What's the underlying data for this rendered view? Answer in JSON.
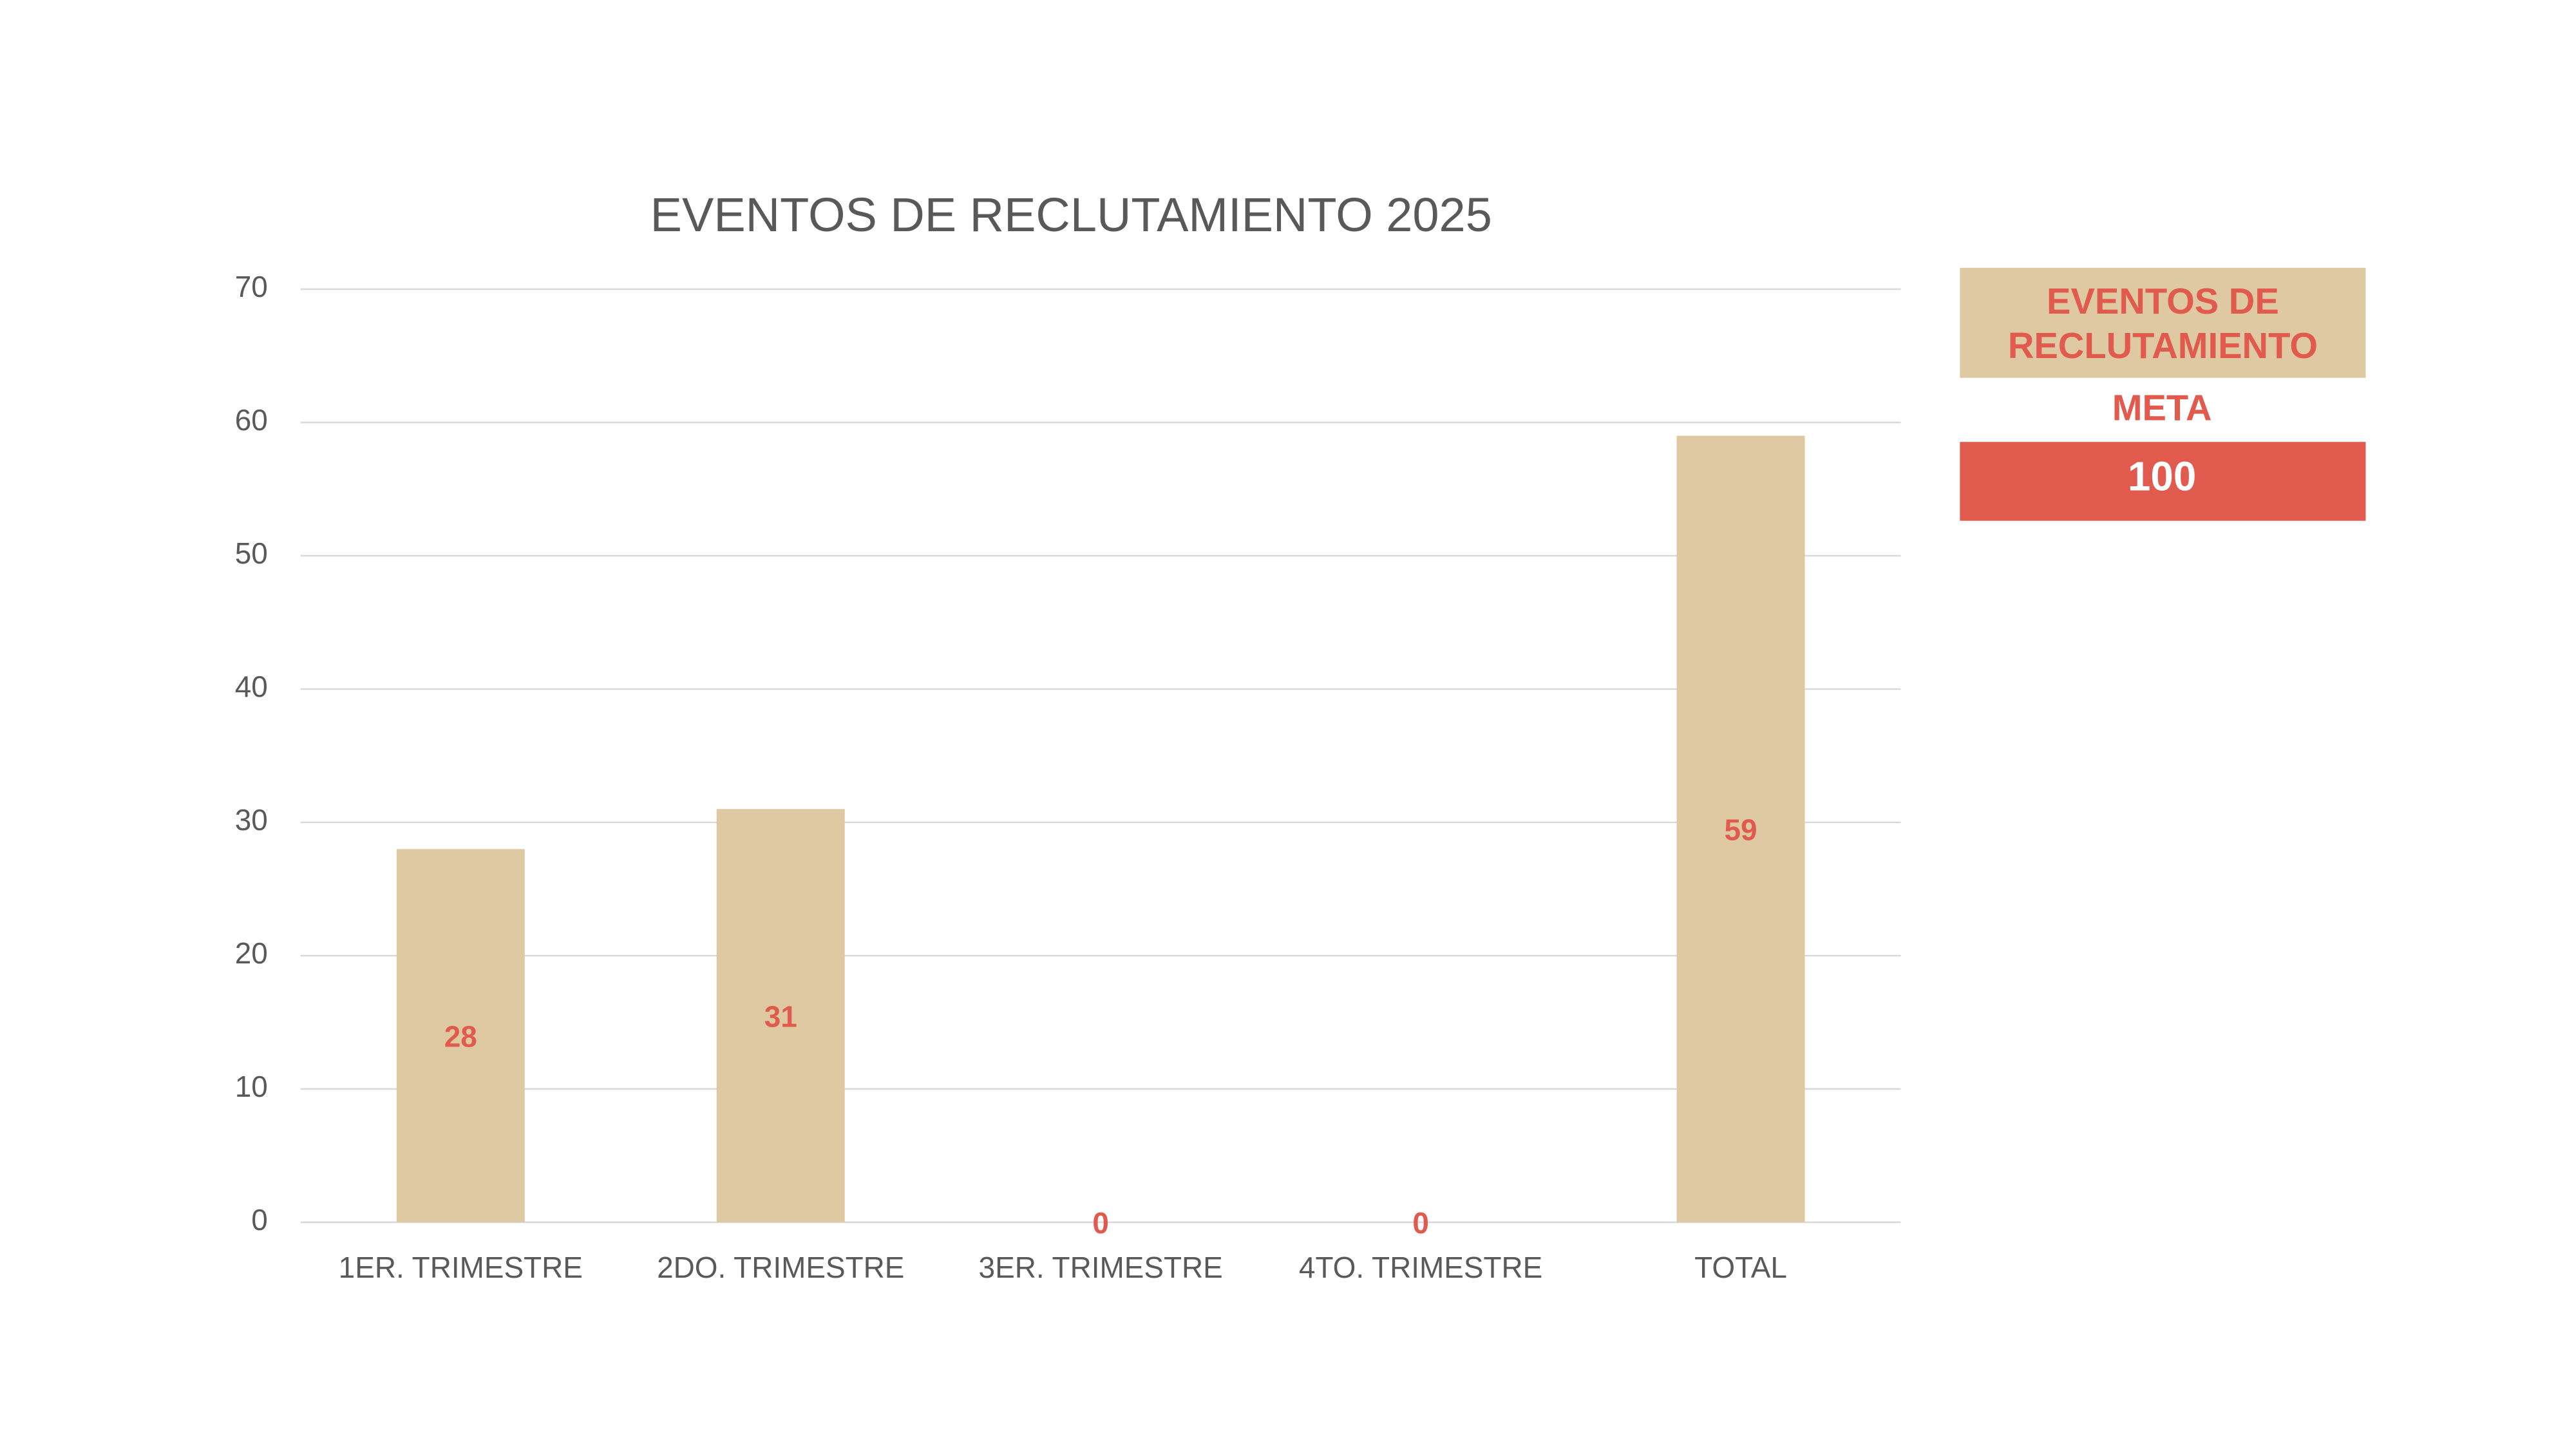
{
  "chart_data": {
    "type": "bar",
    "title": "EVENTOS DE RECLUTAMIENTO 2025",
    "categories": [
      "1ER. TRIMESTRE",
      "2DO. TRIMESTRE",
      "3ER. TRIMESTRE",
      "4TO. TRIMESTRE",
      "TOTAL"
    ],
    "values": [
      28,
      31,
      0,
      0,
      59
    ],
    "color": "#dfc9a2",
    "label_color": "#e05a4e",
    "ylim": [
      0,
      70
    ],
    "yticks": [
      0,
      10,
      20,
      30,
      40,
      50,
      60,
      70
    ],
    "grid": true
  },
  "goal_box": {
    "title": "EVENTOS DE RECLUTAMIENTO",
    "label": "META",
    "value": 100
  }
}
